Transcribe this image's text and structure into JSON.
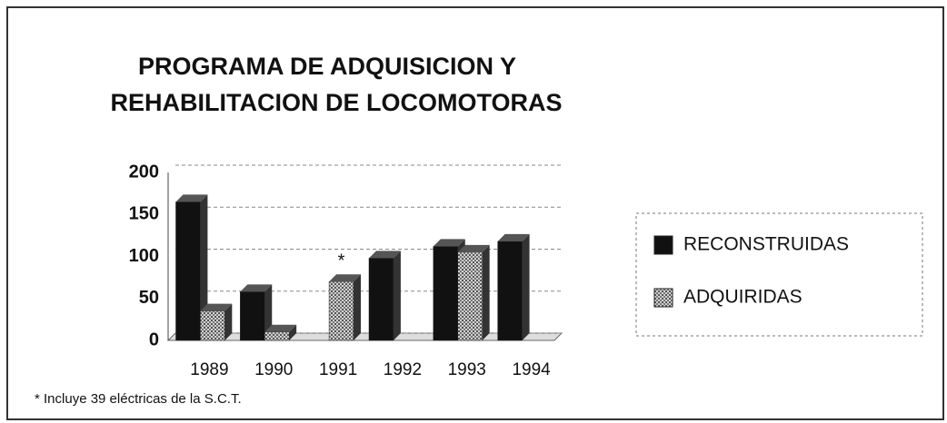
{
  "chart_data": {
    "type": "bar",
    "title": [
      "PROGRAMA DE ADQUISICION Y",
      "REHABILITACION DE LOCOMOTORAS"
    ],
    "categories": [
      "1989",
      "1990",
      "1991",
      "1992",
      "1993",
      "1994"
    ],
    "series": [
      {
        "name": "RECONSTRUIDAS",
        "color": "#111111",
        "values": [
          165,
          58,
          0,
          98,
          112,
          118
        ]
      },
      {
        "name": "ADQUIRIDAS",
        "color": "#9a9a9a",
        "values": [
          35,
          10,
          70,
          0,
          105,
          0
        ]
      }
    ],
    "annotations": [
      "*"
    ],
    "footnote": "* Incluye 39 eléctricas de la S.C.T.",
    "ylim": [
      0,
      200
    ],
    "yticks": [
      0,
      50,
      100,
      150,
      200
    ],
    "grid": true,
    "legend": "right"
  }
}
